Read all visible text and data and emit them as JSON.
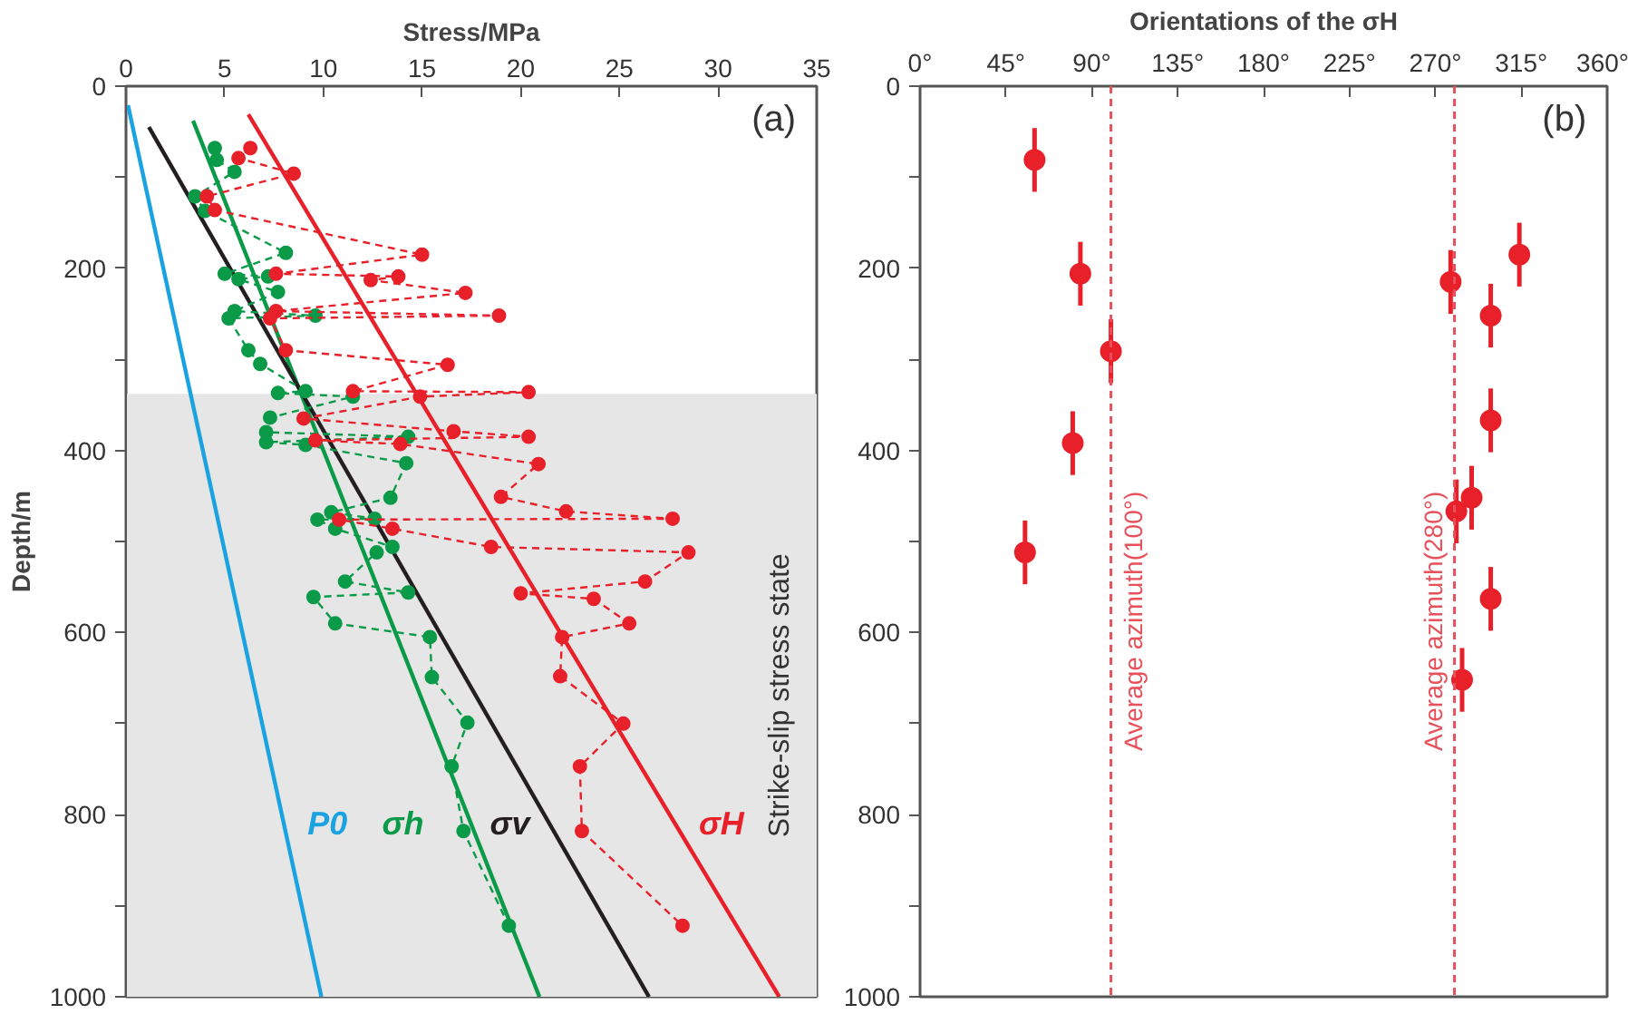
{
  "chart_data": [
    {
      "type": "line",
      "xlabel": "Stress/MPa",
      "ylabel": "Depth/m",
      "xlim": [
        0,
        35
      ],
      "xticks": [
        0,
        5,
        10,
        15,
        20,
        25,
        30,
        35
      ],
      "ylim": [
        1000,
        0
      ],
      "yticks": [
        0,
        {
          "value": 100,
          "label": null
        },
        200,
        {
          "value": 300,
          "label": null
        },
        400,
        {
          "value": 500,
          "label": null
        },
        600,
        {
          "value": 700,
          "label": null
        },
        800,
        {
          "value": 900,
          "label": null
        },
        1000
      ],
      "annotations": [
        "(a)"
      ],
      "bands": [
        {
          "axis": "y",
          "from": 338,
          "to": 1000,
          "label": "Strike-slip stress state",
          "color": "#e6e6e6"
        }
      ],
      "series": [
        {
          "name": "P0",
          "color": "#1aa3e0",
          "x": [
            0.1,
            9.9
          ],
          "values": [
            21,
            1000
          ],
          "line_style": "solid"
        },
        {
          "name": "σh",
          "color": "#0a9a48",
          "x": [
            3.4,
            20.95
          ],
          "values": [
            38,
            1000
          ],
          "line_style": "solid"
        },
        {
          "name": "σv",
          "color": "#231f20",
          "x": [
            1.16,
            26.5
          ],
          "values": [
            45,
            1000
          ],
          "line_style": "solid"
        },
        {
          "name": "σH",
          "color": "#e8202a",
          "x": [
            6.2,
            33.1
          ],
          "values": [
            31,
            1000
          ],
          "line_style": "solid"
        },
        {
          "color": "#0a9a48",
          "marker": "circle",
          "line_style": "dashed",
          "x": [
            4.5,
            4.6,
            5.5,
            3.5,
            4.0,
            8.1,
            5.0,
            7.2,
            5.7,
            7.7,
            5.5,
            9.6,
            5.2,
            6.2,
            6.8,
            9.1,
            7.7,
            11.5,
            7.3,
            7.1,
            14.3,
            7.1,
            9.1,
            14.2,
            13.4,
            10.4,
            12.6,
            9.7,
            10.6,
            13.5,
            12.7,
            11.1,
            14.3,
            9.5,
            10.6,
            15.4,
            15.5,
            17.3,
            16.5,
            17.1,
            19.4
          ],
          "values": [
            68,
            81,
            94,
            121,
            137,
            183,
            206,
            209,
            212,
            226,
            247,
            252,
            255,
            290,
            305,
            335,
            337,
            341,
            364,
            380,
            385,
            391,
            394,
            414,
            452,
            468,
            475,
            476,
            486,
            506,
            512,
            544,
            556,
            561,
            590,
            605,
            649,
            699,
            747,
            818,
            922
          ]
        },
        {
          "color": "#e8202a",
          "marker": "circle",
          "line_style": "dashed",
          "x": [
            6.3,
            5.7,
            8.5,
            4.1,
            4.5,
            15.0,
            7.6,
            13.8,
            12.4,
            17.2,
            7.6,
            18.9,
            7.3,
            8.1,
            16.3,
            11.5,
            20.4,
            14.9,
            9.0,
            16.6,
            20.4,
            9.6,
            13.9,
            20.9,
            19.0,
            22.3,
            27.7,
            10.8,
            13.5,
            18.5,
            28.5,
            26.3,
            20.0,
            23.7,
            25.5,
            22.1,
            22.0,
            25.2,
            23.0,
            23.1,
            28.2
          ],
          "values": [
            68,
            79,
            96,
            121,
            136,
            185,
            206,
            209,
            213,
            227,
            247,
            252,
            255,
            290,
            306,
            335,
            336,
            341,
            365,
            379,
            385,
            389,
            393,
            415,
            451,
            467,
            475,
            476,
            486,
            506,
            512,
            544,
            557,
            563,
            590,
            605,
            648,
            700,
            747,
            818,
            922
          ]
        }
      ]
    },
    {
      "type": "scatter",
      "xlabel": "Orientations of the σH",
      "marker": "circle",
      "xlim": [
        0,
        360
      ],
      "xticks": [
        {
          "value": 0,
          "label": "0°"
        },
        {
          "value": 45,
          "label": "45°"
        },
        {
          "value": 90,
          "label": "90°"
        },
        {
          "value": 135,
          "label": "135°"
        },
        {
          "value": 180,
          "label": "180°"
        },
        {
          "value": 225,
          "label": "225°"
        },
        {
          "value": 270,
          "label": "270°"
        },
        {
          "value": 315,
          "label": "315°"
        },
        {
          "value": 360,
          "label": "360°"
        }
      ],
      "ylim": [
        1000,
        0
      ],
      "yticks": [
        0,
        {
          "value": 100,
          "label": null
        },
        200,
        {
          "value": 300,
          "label": null
        },
        400,
        {
          "value": 500,
          "label": null
        },
        600,
        {
          "value": 700,
          "label": null
        },
        800,
        {
          "value": 900,
          "label": null
        },
        1000
      ],
      "annotations": [
        "(b)"
      ],
      "ref_lines": [
        {
          "axis": "x",
          "value": 100,
          "label": "Average azimuth(100°)",
          "color": "#e8505a",
          "line_style": "dashed"
        },
        {
          "axis": "x",
          "value": 280,
          "label": "Average azimuth(280°)",
          "color": "#e8505a",
          "line_style": "dashed"
        }
      ],
      "series": [
        {
          "color": "#e8202a",
          "x": [
            60,
            84,
            100,
            80,
            314,
            278,
            299,
            299,
            289,
            281,
            55,
            299,
            284
          ],
          "values": [
            81,
            206,
            291,
            392,
            185,
            215,
            252,
            367,
            452,
            467,
            512,
            563,
            652
          ],
          "errors": [
            35,
            35,
            35,
            35,
            35,
            35,
            35,
            35,
            35,
            35,
            35,
            35,
            35
          ]
        }
      ]
    }
  ]
}
